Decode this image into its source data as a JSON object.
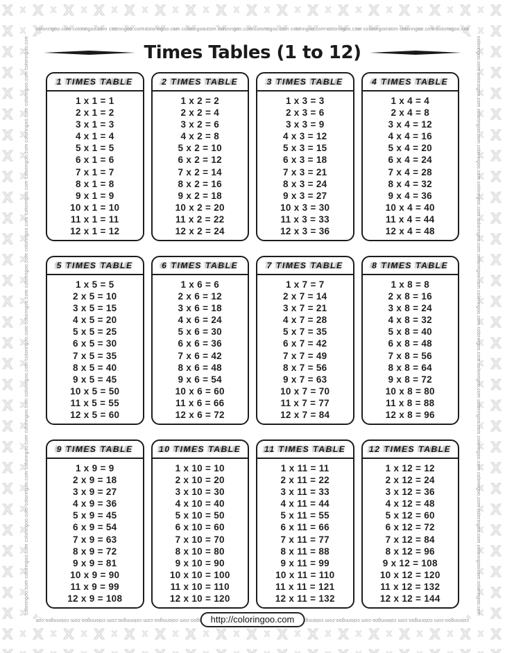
{
  "title": "Times Tables (1 to 12)",
  "watermark": {
    "strip_text": "coloringoo.com coloringoo.com coloringoo.com coloringoo.com coloringoo.com coloringoo.com coloringoo.com coloringoo.com coloringoo.com coloringoo.com coloringoo.com coloringoo.com coloringoo.com coloringoo.com coloringoo.com coloringoo.com coloringoo.com coloringoo.com coloringoo.com coloringoo.com coloringoo.com coloringoo.com"
  },
  "footer": {
    "url_label": "http://coloringoo.com"
  },
  "appearance": {
    "ink_color": "#1c1c1c",
    "watermark_gray": "#8f8f8f",
    "pattern_gray": "#d9d9d9"
  },
  "tables": [
    {
      "header": "1 TIMES TABLE",
      "rows": [
        "1 x 1 = 1",
        "2 x 1 = 2",
        "3 x 1 = 3",
        "4 x 1 = 4",
        "5 x 1 = 5",
        "6 x 1 = 6",
        "7 x 1 = 7",
        "8 x 1 = 8",
        "9 x 1 = 9",
        "10 x 1 = 10",
        "11 x 1 = 11",
        "12 x 1 = 12"
      ]
    },
    {
      "header": "2 TIMES TABLE",
      "rows": [
        "1 x 2 = 2",
        "2 x 2 = 4",
        "3 x 2 = 6",
        "4 x 2 = 8",
        "5 x 2 = 10",
        "6 x 2 = 12",
        "7 x 2 = 14",
        "8 x 2 = 16",
        "9 x 2 = 18",
        "10 x 2 = 20",
        "11 x 2 = 22",
        "12 x 2 = 24"
      ]
    },
    {
      "header": "3 TIMES TABLE",
      "rows": [
        "1 x 3 = 3",
        "2 x 3 = 6",
        "3 x 3 = 9",
        "4 x 3 = 12",
        "5 x 3 = 15",
        "6 x 3 = 18",
        "7 x 3 = 21",
        "8 x 3 = 24",
        "9 x 3 = 27",
        "10 x 3 = 30",
        "11 x 3 = 33",
        "12 x 3 = 36"
      ]
    },
    {
      "header": "4 TIMES TABLE",
      "rows": [
        "1 x 4 = 4",
        "2 x 4 = 8",
        "3 x 4 = 12",
        "4 x 4 = 16",
        "5 x 4 = 20",
        "6 x 4 = 24",
        "7 x 4 = 28",
        "8 x 4 = 32",
        "9 x 4 = 36",
        "10 x 4 = 40",
        "11 x 4 = 44",
        "12 x 4 = 48"
      ]
    },
    {
      "header": "5 TIMES TABLE",
      "rows": [
        "1 x 5 = 5",
        "2 x 5 = 10",
        "3 x 5 = 15",
        "4 x 5 = 20",
        "5 x 5 = 25",
        "6 x 5 = 30",
        "7 x 5 = 35",
        "8 x 5 = 40",
        "9 x 5 = 45",
        "10 x 5 = 50",
        "11 x 5 = 55",
        "12 x 5 = 60"
      ]
    },
    {
      "header": "6 TIMES TABLE",
      "rows": [
        "1 x 6 = 6",
        "2 x 6 = 12",
        "3 x 6 = 18",
        "4 x 6 = 24",
        "5 x 6 = 30",
        "6 x 6 = 36",
        "7 x 6 = 42",
        "8 x 6 = 48",
        "9 x 6 = 54",
        "10 x 6 = 60",
        "11 x 6 = 66",
        "12 x 6 = 72"
      ]
    },
    {
      "header": "7 TIMES TABLE",
      "rows": [
        "1 x 7 = 7",
        "2 x 7 = 14",
        "3 x 7 = 21",
        "4 x 7 = 28",
        "5 x 7 = 35",
        "6 x 7 = 42",
        "7 x 7 = 49",
        "8 x 7 = 56",
        "9 x 7 = 63",
        "10 x 7 = 70",
        "11 x 7 = 77",
        "12 x 7 = 84"
      ]
    },
    {
      "header": "8 TIMES TABLE",
      "rows": [
        "1 x 8 = 8",
        "2 x 8 = 16",
        "3 x 8 = 24",
        "4 x 8 = 32",
        "5 x 8 = 40",
        "6 x 8 = 48",
        "7 x 8 = 56",
        "8 x 8 = 64",
        "9 x 8 = 72",
        "10 x 8 = 80",
        "11 x 8 = 88",
        "12 x 8 = 96"
      ]
    },
    {
      "header": "9 TIMES TABLE",
      "rows": [
        "1 x 9 = 9",
        "2 x 9 = 18",
        "3 x 9 = 27",
        "4 x 9 = 36",
        "5 x 9 = 45",
        "6 x 9 = 54",
        "7 x 9 = 63",
        "8 x 9 = 72",
        "9 x 9 = 81",
        "10 x 9 = 90",
        "11 x 9 = 99",
        "12 x 9 = 108"
      ]
    },
    {
      "header": "10 TIMES TABLE",
      "rows": [
        "1 x 10 = 10",
        "2 x 10 = 20",
        "3 x 10 = 30",
        "4 x 10 = 40",
        "5 x 10 = 50",
        "6 x 10 = 60",
        "7 x 10 = 70",
        "8 x 10 = 80",
        "9 x 10 = 90",
        "10 x 10 = 100",
        "11 x 10 = 110",
        "12 x 10 = 120"
      ]
    },
    {
      "header": "11 TIMES TABLE",
      "rows": [
        "1 x 11 = 11",
        "2 x 11 = 22",
        "3 x 11 = 33",
        "4 x 11 = 44",
        "5 x 11 = 55",
        "6 x 11 = 66",
        "7 x 11 = 77",
        "8 x 11 = 88",
        "9 x 11 = 99",
        "10 x 11 = 110",
        "11 x 11 = 121",
        "12 x 11 = 132"
      ]
    },
    {
      "header": "12 TIMES TABLE",
      "rows": [
        "1 x 12 = 12",
        "2 x 12 = 24",
        "3 x 12 = 36",
        "4 x 12 = 48",
        "5 x 12 = 60",
        "6 x 12 = 72",
        "7 x 12 = 84",
        "8 x 12 = 96",
        "9 x 12 = 108",
        "10 x 12 = 120",
        "11 x 12 = 132",
        "12 x 12 = 144"
      ]
    }
  ]
}
